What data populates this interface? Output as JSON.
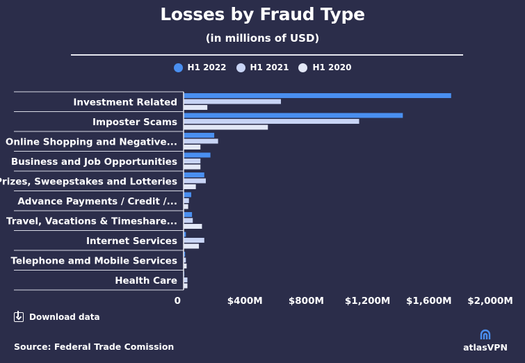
{
  "chart_data": {
    "type": "bar",
    "orientation": "horizontal",
    "title": "Losses by Fraud Type",
    "subtitle": "(in millions of USD)",
    "categories": [
      "Investment Related",
      "Imposter Scams",
      "Online Shopping and Negative...",
      "Business and Job Opportunities",
      "Prizes, Sweepstakes and Lotteries",
      "Advance Payments / Credit /...",
      "Travel, Vacations & Timeshare...",
      "Internet Services",
      "Telephone amd Mobile Services",
      "Health Care"
    ],
    "series": [
      {
        "name": "H1 2022",
        "color": "#4a8ff0",
        "values": [
          1745,
          1430,
          200,
          175,
          135,
          50,
          55,
          15,
          10,
          5
        ]
      },
      {
        "name": "H1 2021",
        "color": "#c8d4f5",
        "values": [
          635,
          1145,
          225,
          110,
          145,
          35,
          60,
          135,
          15,
          25
        ]
      },
      {
        "name": "H1 2020",
        "color": "#e3e8f7",
        "values": [
          155,
          550,
          110,
          110,
          80,
          30,
          120,
          100,
          20,
          25
        ]
      }
    ],
    "xlim": [
      0,
      2000
    ],
    "x_ticks": [
      0,
      400,
      800,
      1200,
      1600,
      2000
    ],
    "x_tick_labels": [
      "0",
      "$400M",
      "$800M",
      "$1,200M",
      "$1,600M",
      "$2,000M"
    ],
    "legend_position": "top",
    "grid": false
  },
  "download_label": "Download data",
  "source_text": "Source: Federal Trade Comission",
  "brand_name": "atlasVPN"
}
